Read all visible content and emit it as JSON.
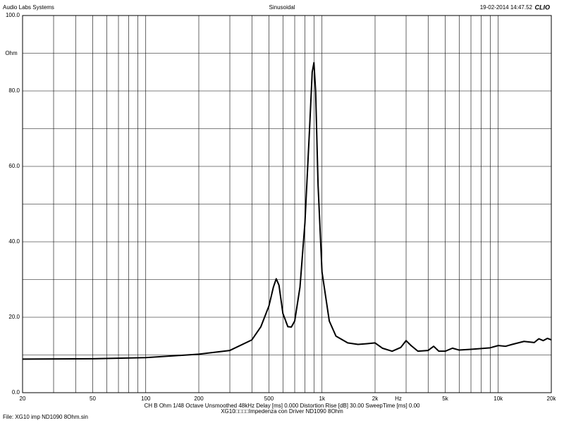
{
  "chart_data": {
    "type": "line",
    "header_left": "Audio Labs Systems",
    "title": "Sinusoidal",
    "header_right": "19-02-2014 14:47.52",
    "logo": "CLIO",
    "y_unit": "Ohm",
    "x_unit": "Hz",
    "footer_line1": "CH B  Ohm   1/48 Octave   Unsmoothed   48kHz   Delay [ms] 0.000   Distortion Rise [dB] 30.00   SweepTime [ms] 0.00",
    "footer_line2": "XG10□□□□Impedenza con Driver ND1090 8Ohm",
    "file": "File: XG10 imp ND1090 8Ohm.sin",
    "x_log": true,
    "xlim": [
      20,
      20000
    ],
    "ylim": [
      0,
      100
    ],
    "xticks": [
      20,
      50,
      100,
      200,
      500,
      {
        "value": 1000,
        "label": "1k"
      },
      {
        "value": 2000,
        "label": "2k"
      },
      {
        "value": 5000,
        "label": "5k"
      },
      {
        "value": 10000,
        "label": "10k"
      },
      {
        "value": 20000,
        "label": "20k"
      }
    ],
    "yticks": [
      {
        "value": 0,
        "label": "0.0"
      },
      {
        "value": 20,
        "label": "20.0"
      },
      {
        "value": 40,
        "label": "40.0"
      },
      {
        "value": 60,
        "label": "60.0"
      },
      {
        "value": 80,
        "label": "80.0"
      },
      {
        "value": 100,
        "label": "100.0"
      }
    ],
    "xgrid": [
      20,
      30,
      40,
      50,
      60,
      70,
      80,
      90,
      100,
      200,
      300,
      400,
      500,
      600,
      700,
      800,
      900,
      1000,
      2000,
      3000,
      4000,
      5000,
      6000,
      7000,
      8000,
      9000,
      10000,
      20000
    ],
    "ygrid": [
      0,
      10,
      20,
      30,
      40,
      50,
      60,
      70,
      80,
      90,
      100
    ],
    "grid": true,
    "series": [
      {
        "color": "#000000",
        "x": [
          20,
          50,
          100,
          200,
          300,
          400,
          450,
          500,
          530,
          550,
          570,
          600,
          640,
          670,
          700,
          750,
          800,
          850,
          880,
          900,
          920,
          950,
          1000,
          1100,
          1200,
          1400,
          1600,
          1800,
          2000,
          2200,
          2500,
          2800,
          3000,
          3200,
          3500,
          4000,
          4300,
          4600,
          5000,
          5500,
          6000,
          7000,
          8000,
          9000,
          10000,
          11000,
          12000,
          14000,
          16000,
          17000,
          18000,
          19000,
          20000
        ],
        "values": [
          8.9,
          9.0,
          9.3,
          10.2,
          11.2,
          14,
          17.5,
          23,
          28,
          30.2,
          28.5,
          21,
          17.5,
          17.4,
          19,
          28,
          45,
          70,
          85,
          87.5,
          80,
          55,
          32,
          19,
          15,
          13.2,
          12.8,
          13.0,
          13.2,
          11.8,
          11.0,
          12.0,
          13.8,
          12.5,
          11.0,
          11.2,
          12.3,
          11.0,
          11.0,
          11.8,
          11.3,
          11.5,
          11.7,
          11.9,
          12.5,
          12.3,
          12.8,
          13.6,
          13.3,
          14.3,
          13.8,
          14.4,
          14.0
        ]
      }
    ]
  }
}
